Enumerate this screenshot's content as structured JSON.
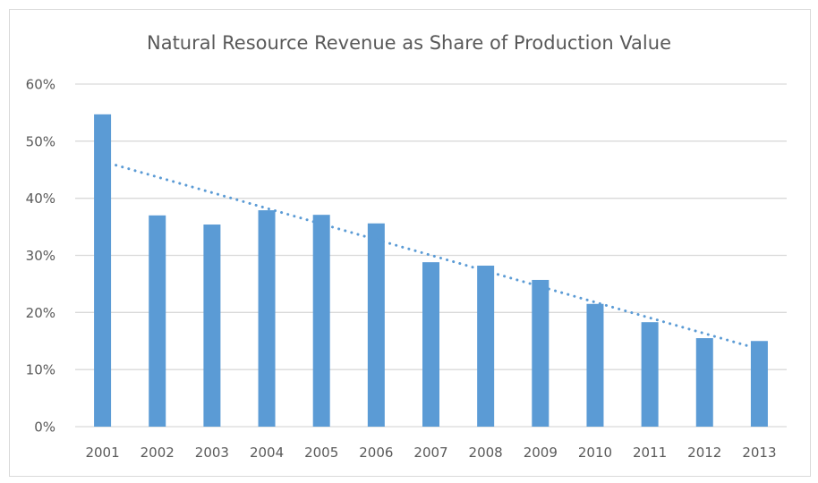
{
  "chart_data": {
    "type": "bar",
    "title": "Natural Resource Revenue as Share of Production Value",
    "xlabel": "",
    "ylabel": "",
    "categories": [
      "2001",
      "2002",
      "2003",
      "2004",
      "2005",
      "2006",
      "2007",
      "2008",
      "2009",
      "2010",
      "2011",
      "2012",
      "2013"
    ],
    "series": [
      {
        "name": "Natural Resource Revenue as Share of Production Value",
        "values": [
          54.7,
          37.0,
          35.4,
          37.9,
          37.1,
          35.6,
          28.8,
          28.2,
          25.7,
          21.5,
          18.3,
          15.5,
          15.0
        ],
        "color": "#5B9BD5"
      }
    ],
    "trendline": {
      "type": "linear",
      "style": "dotted",
      "color": "#5B9BD5",
      "start_value": 45.8,
      "end_value": 14.2
    },
    "ylim": [
      0,
      60
    ],
    "yticks": [
      "0%",
      "10%",
      "20%",
      "30%",
      "40%",
      "50%",
      "60%"
    ],
    "ytick_values": [
      0,
      10,
      20,
      30,
      40,
      50,
      60
    ],
    "grid": true,
    "legend": "none"
  }
}
